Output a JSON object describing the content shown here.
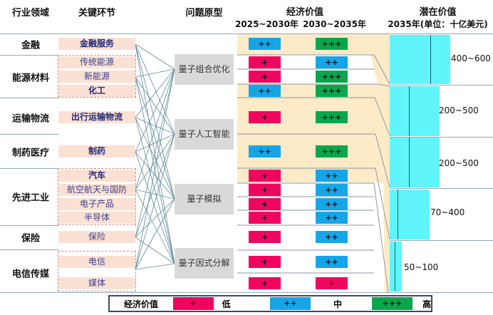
{
  "headers": {
    "sector": "行业领域",
    "key_link": "关键环节",
    "problem": "问题原型",
    "econ": "经济价值",
    "econ_p1": "2025~2030年",
    "econ_p2": "2030~2035年",
    "potential": "潜在价值",
    "potential_sub": "2035年(单位：十亿美元)"
  },
  "sectors": [
    {
      "label": "金融"
    },
    {
      "label": "能源材料"
    },
    {
      "label": "运输物流"
    },
    {
      "label": "制药医疗"
    },
    {
      "label": "先进工业"
    },
    {
      "label": "保险"
    },
    {
      "label": "电信传媒"
    }
  ],
  "rows": [
    {
      "key": "金融服务",
      "v1": "++",
      "v2": "+++"
    },
    {
      "key": "传统能源",
      "v1": "+",
      "v2": "++"
    },
    {
      "key": "新能源",
      "v1": "+",
      "v2": "+++"
    },
    {
      "key": "化工",
      "v1": "++",
      "v2": "+++"
    },
    {
      "key": "出行运输物流",
      "v1": "+",
      "v2": "+++"
    },
    {
      "key": "制药",
      "v1": "++",
      "v2": "+++"
    },
    {
      "key": "汽车",
      "v1": "+",
      "v2": "++"
    },
    {
      "key": "航空航天与国防",
      "v1": "+",
      "v2": "++"
    },
    {
      "key": "电子产品",
      "v1": "+",
      "v2": "++"
    },
    {
      "key": "半导体",
      "v1": "+",
      "v2": "++"
    },
    {
      "key": "保险",
      "v1": "+",
      "v2": "++"
    },
    {
      "key": "电信",
      "v1": "+",
      "v2": "++"
    },
    {
      "key": "媒体",
      "v1": "+",
      "v2": "+"
    }
  ],
  "problems": [
    "量子组合优化",
    "量子人工智能",
    "量子模拟",
    "量子因式分解"
  ],
  "potential": [
    "400~600",
    "200~500",
    "200~500",
    "70~400",
    "50~100"
  ],
  "legend": {
    "title": "经济价值",
    "items": [
      {
        "symbol": "+",
        "label": "低",
        "color": "#f0055f"
      },
      {
        "symbol": "++",
        "label": "中",
        "color": "#16a5e6"
      },
      {
        "symbol": "+++",
        "label": "高",
        "color": "#0aa64c"
      }
    ]
  },
  "colors": {
    "low": "#f0055f",
    "mid": "#16a5e6",
    "high": "#0aa64c",
    "key_bg": "#fbe1d3",
    "beige": "#fdebc8",
    "potential": "#5ff5fb"
  }
}
